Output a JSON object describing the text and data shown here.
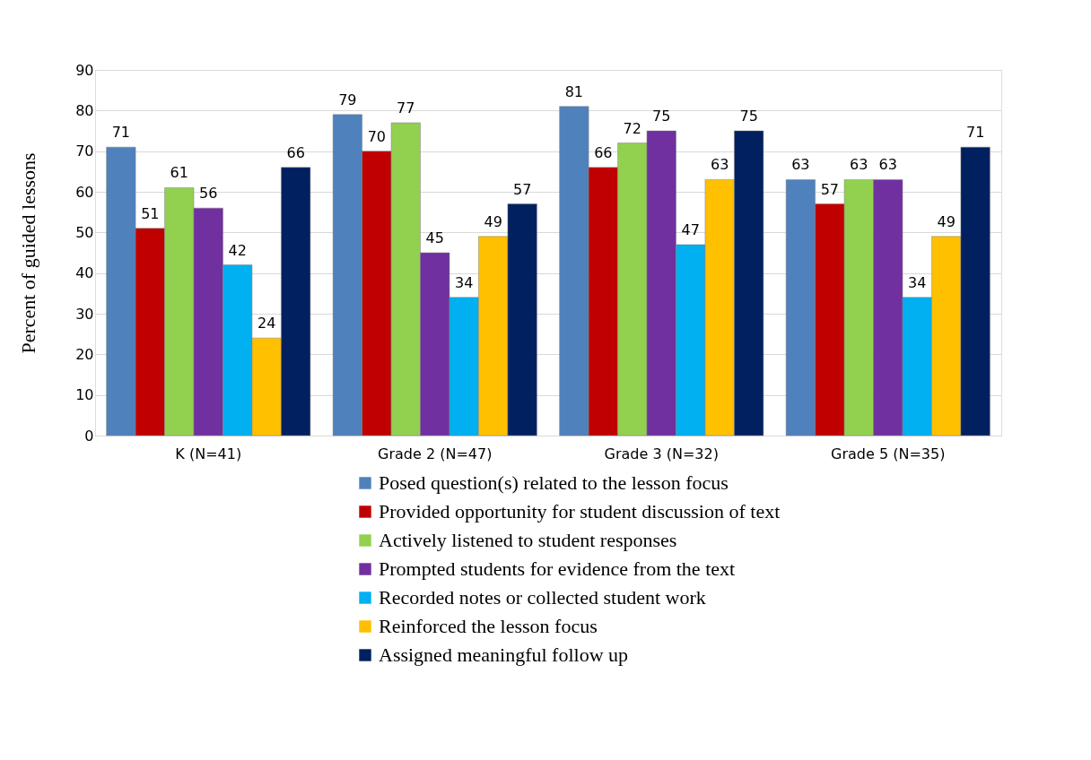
{
  "chart_data": {
    "type": "bar",
    "ylabel": "Percent of guided lessons",
    "categories": [
      "K (N=41)",
      "Grade 2 (N=47)",
      "Grade 3 (N=32)",
      "Grade 5 (N=35)"
    ],
    "series": [
      {
        "name": "Posed question(s) related to the lesson focus",
        "color": "#4f81bd",
        "values": [
          71,
          79,
          81,
          63
        ]
      },
      {
        "name": "Provided opportunity for student discussion of text",
        "color": "#c00000",
        "values": [
          51,
          70,
          66,
          57
        ]
      },
      {
        "name": "Actively listened to student responses",
        "color": "#92d050",
        "values": [
          61,
          77,
          72,
          63
        ]
      },
      {
        "name": "Prompted students for evidence from the text",
        "color": "#7030a0",
        "values": [
          56,
          45,
          75,
          63
        ]
      },
      {
        "name": "Recorded notes or collected student work",
        "color": "#00b0f0",
        "values": [
          42,
          34,
          47,
          34
        ]
      },
      {
        "name": "Reinforced the lesson focus",
        "color": "#ffc000",
        "values": [
          24,
          49,
          63,
          49
        ]
      },
      {
        "name": "Assigned meaningful follow up",
        "color": "#002060",
        "values": [
          66,
          57,
          75,
          71
        ]
      }
    ],
    "ylim": [
      0,
      90
    ],
    "yticks": [
      0,
      10,
      20,
      30,
      40,
      50,
      60,
      70,
      80,
      90
    ],
    "grid": "y",
    "legend": "bottom",
    "data_labels": true
  }
}
